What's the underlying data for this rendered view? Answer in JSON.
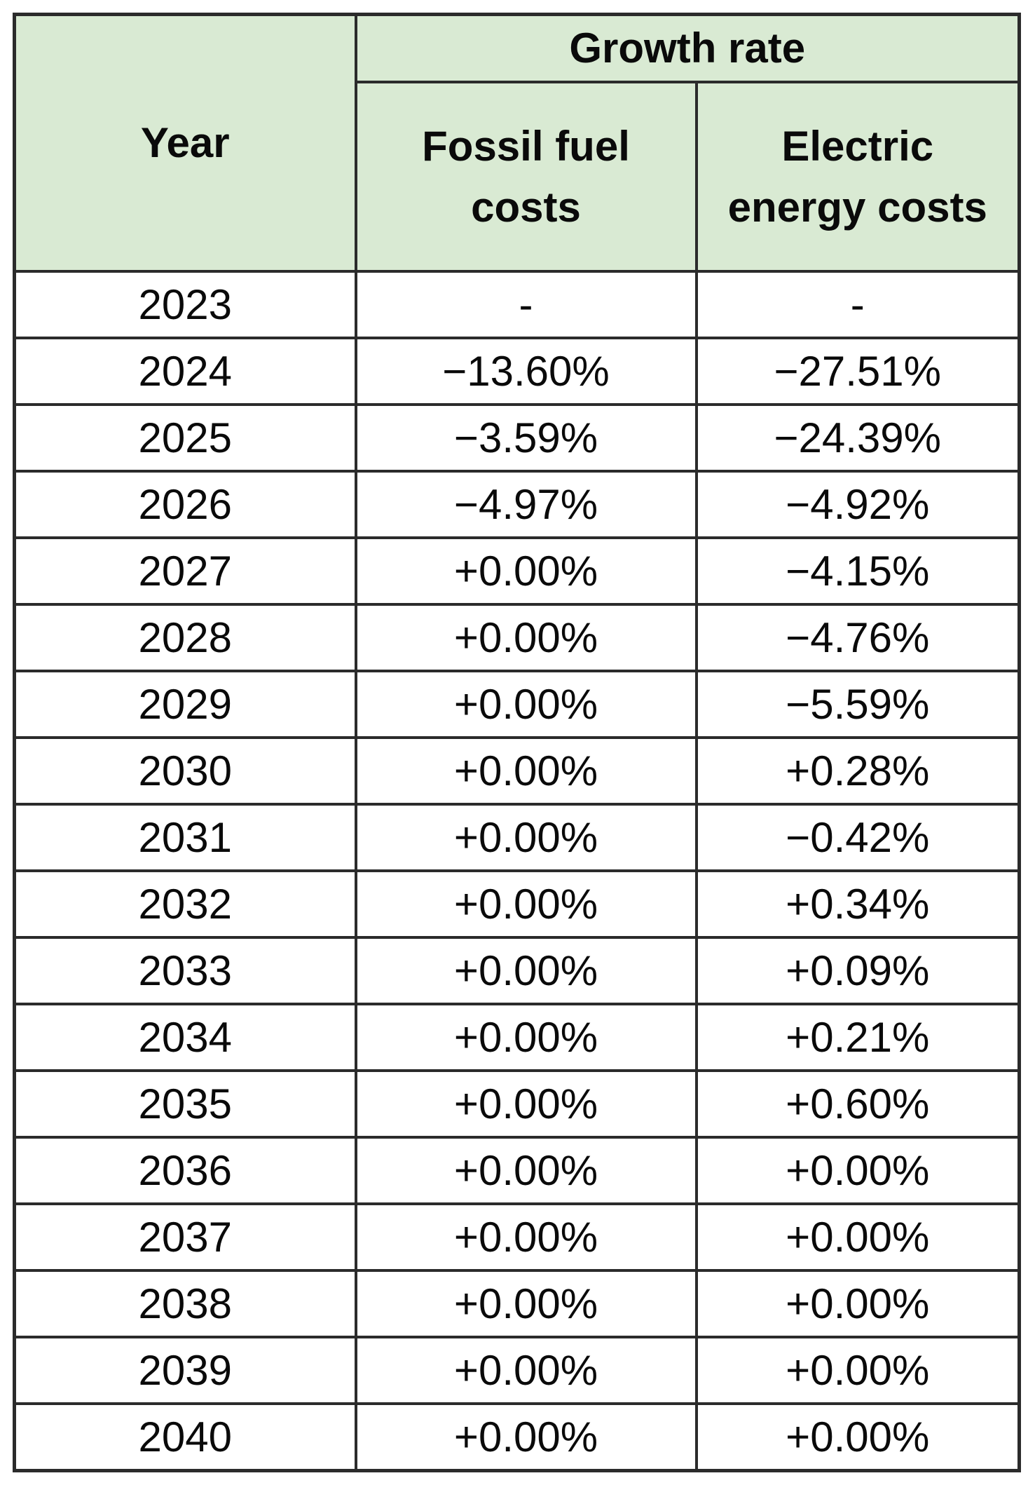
{
  "table": {
    "year_header": "Year",
    "group_header": "Growth rate",
    "col_headers": [
      "Fossil fuel costs",
      "Electric energy costs"
    ]
  },
  "chart_data": {
    "type": "table",
    "title": "Growth rate",
    "columns": [
      "Year",
      "Fossil fuel costs",
      "Electric energy costs"
    ],
    "rows": [
      [
        "2023",
        "-",
        "-"
      ],
      [
        "2024",
        "−13.60%",
        "−27.51%"
      ],
      [
        "2025",
        "−3.59%",
        "−24.39%"
      ],
      [
        "2026",
        "−4.97%",
        "−4.92%"
      ],
      [
        "2027",
        "+0.00%",
        "−4.15%"
      ],
      [
        "2028",
        "+0.00%",
        "−4.76%"
      ],
      [
        "2029",
        "+0.00%",
        "−5.59%"
      ],
      [
        "2030",
        "+0.00%",
        "+0.28%"
      ],
      [
        "2031",
        "+0.00%",
        "−0.42%"
      ],
      [
        "2032",
        "+0.00%",
        "+0.34%"
      ],
      [
        "2033",
        "+0.00%",
        "+0.09%"
      ],
      [
        "2034",
        "+0.00%",
        "+0.21%"
      ],
      [
        "2035",
        "+0.00%",
        "+0.60%"
      ],
      [
        "2036",
        "+0.00%",
        "+0.00%"
      ],
      [
        "2037",
        "+0.00%",
        "+0.00%"
      ],
      [
        "2038",
        "+0.00%",
        "+0.00%"
      ],
      [
        "2039",
        "+0.00%",
        "+0.00%"
      ],
      [
        "2040",
        "+0.00%",
        "+0.00%"
      ]
    ]
  },
  "colors": {
    "header_bg": "#d9ead3",
    "border": "#2b2b2b",
    "text": "#0a0a0a"
  }
}
